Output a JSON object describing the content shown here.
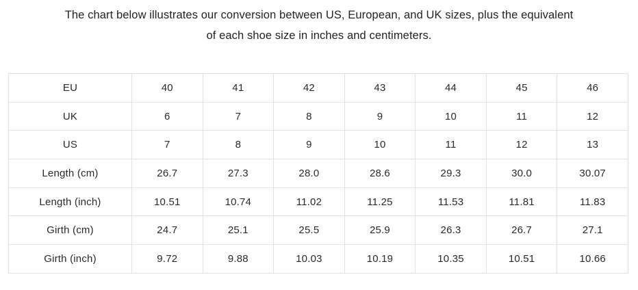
{
  "intro": {
    "line1": "The chart below illustrates our conversion between US, European, and UK sizes, plus the equivalent",
    "line2": "of each shoe size in inches and centimeters."
  },
  "colors": {
    "background": "#ffffff",
    "text": "#2a2a2a",
    "table_border": "#e1e1e1"
  },
  "table": {
    "rows": [
      {
        "label": "EU",
        "values": [
          "40",
          "41",
          "42",
          "43",
          "44",
          "45",
          "46"
        ]
      },
      {
        "label": "UK",
        "values": [
          "6",
          "7",
          "8",
          "9",
          "10",
          "11",
          "12"
        ]
      },
      {
        "label": "US",
        "values": [
          "7",
          "8",
          "9",
          "10",
          "11",
          "12",
          "13"
        ]
      },
      {
        "label": "Length (cm)",
        "values": [
          "26.7",
          "27.3",
          "28.0",
          "28.6",
          "29.3",
          "30.0",
          "30.07"
        ]
      },
      {
        "label": "Length (inch)",
        "values": [
          "10.51",
          "10.74",
          "11.02",
          "11.25",
          "11.53",
          "11.81",
          "11.83"
        ]
      },
      {
        "label": "Girth (cm)",
        "values": [
          "24.7",
          "25.1",
          "25.5",
          "25.9",
          "26.3",
          "26.7",
          "27.1"
        ]
      },
      {
        "label": "Girth (inch)",
        "values": [
          "9.72",
          "9.88",
          "10.03",
          "10.19",
          "10.35",
          "10.51",
          "10.66"
        ]
      }
    ]
  }
}
